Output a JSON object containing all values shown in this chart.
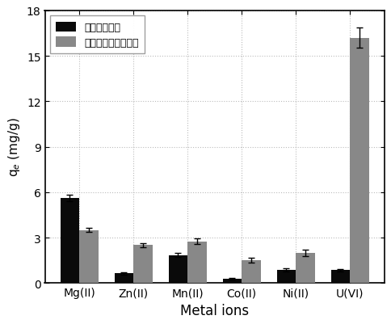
{
  "categories": [
    "Mg(II)",
    "Zn(II)",
    "Mn(II)",
    "Co(II)",
    "Ni(II)",
    "U(VI)"
  ],
  "series": [
    {
      "label": "水热生物质炭",
      "values": [
        5.6,
        0.65,
        1.85,
        0.28,
        0.85,
        0.85
      ],
      "errors": [
        0.22,
        0.08,
        0.12,
        0.06,
        0.1,
        0.08
      ],
      "color": "#0a0a0a"
    },
    {
      "label": "罧基化水热生物质炭",
      "values": [
        3.5,
        2.5,
        2.75,
        1.5,
        2.0,
        16.2
      ],
      "errors": [
        0.12,
        0.12,
        0.18,
        0.15,
        0.2,
        0.65
      ],
      "color": "#888888"
    }
  ],
  "xlabel": "Metal ions",
  "ylabel": "q$_e$ (mg/g)",
  "ylim": [
    0,
    18
  ],
  "yticks": [
    0,
    3,
    6,
    9,
    12,
    15,
    18
  ],
  "bar_width": 0.35,
  "legend_loc": "upper left",
  "bg_color": "#ffffff",
  "grid_color": "#aaaaaa",
  "title": ""
}
